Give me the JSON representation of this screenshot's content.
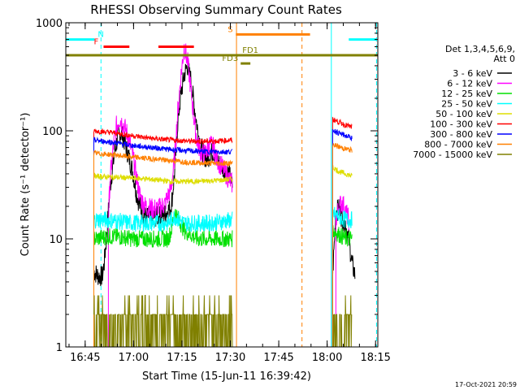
{
  "chart_data": {
    "type": "line",
    "title": "RHESSI Observing Summary Count Rates",
    "xlabel": "Start Time (15-Jun-11 16:39:42)",
    "ylabel": "Count Rate (s⁻¹ detector⁻¹)",
    "yscale": "log",
    "xlim": [
      -0.7,
      96
    ],
    "ylim": [
      1,
      1000
    ],
    "grid": false,
    "legend_position": "right",
    "x_ticks": [
      {
        "label": "16:45",
        "value": 5.3
      },
      {
        "label": "17:00",
        "value": 20.3
      },
      {
        "label": "17:15",
        "value": 35.3
      },
      {
        "label": "17:30",
        "value": 50.3
      },
      {
        "label": "17:45",
        "value": 65.3
      },
      {
        "label": "18:00",
        "value": 80.3
      },
      {
        "label": "18:15",
        "value": 95.3
      }
    ],
    "y_ticks": [
      {
        "label": "1",
        "value": 1
      },
      {
        "label": "10",
        "value": 10
      },
      {
        "label": "100",
        "value": 100
      },
      {
        "label": "1000",
        "value": 1000
      }
    ],
    "legend_header": [
      "Det 1,3,4,5,6,9,",
      "Att 0"
    ],
    "series": [
      {
        "name": "3 - 6 keV",
        "color": "#000000",
        "segments": [
          {
            "x": [
              8,
              9.5,
              10.6,
              11.2,
              12,
              13,
              14.5,
              15.5,
              16.5,
              17.2,
              18,
              19,
              20.2,
              21,
              22.5,
              24,
              26,
              28,
              30,
              32,
              33,
              34,
              35,
              36,
              37,
              38,
              39,
              40,
              41,
              42,
              43,
              44,
              45,
              46,
              48,
              50,
              51
            ],
            "y": [
              5,
              4.5,
              4.5,
              6,
              11,
              30,
              65,
              90,
              95,
              85,
              70,
              55,
              40,
              28,
              19,
              16,
              16,
              16,
              17,
              20,
              40,
              120,
              220,
              330,
              400,
              300,
              180,
              110,
              75,
              60,
              55,
              60,
              65,
              55,
              45,
              40,
              30
            ]
          },
          {
            "x": [
              82,
              83,
              84,
              85,
              86,
              87,
              88,
              89
            ],
            "y": [
              4.5,
              18,
              19,
              15,
              14,
              10,
              6,
              4.5
            ]
          }
        ]
      },
      {
        "name": "6 - 12 keV",
        "color": "#ff00ff",
        "segments": [
          {
            "x": [
              12.5,
              13,
              14,
              15,
              16,
              17,
              18,
              19,
              20,
              21,
              22,
              23,
              24,
              26,
              28,
              30,
              32,
              33,
              34,
              35,
              36,
              37,
              38,
              39,
              40,
              41,
              42,
              43,
              44,
              45,
              46,
              48,
              50,
              51
            ],
            "y": [
              15,
              35,
              70,
              110,
              130,
              115,
              100,
              80,
              60,
              40,
              27,
              22,
              20,
              19,
              19,
              21,
              30,
              55,
              150,
              330,
              600,
              450,
              250,
              130,
              80,
              65,
              60,
              65,
              75,
              70,
              55,
              45,
              35,
              32
            ]
          },
          {
            "x": [
              83,
              84,
              85,
              86,
              87
            ],
            "y": [
              15,
              20,
              22,
              18,
              15
            ]
          }
        ]
      },
      {
        "name": "12 - 25 keV",
        "color": "#00e000",
        "segments": [
          {
            "x": [
              8,
              12,
              16,
              20,
              24,
              28,
              31,
              32,
              33,
              36,
              40,
              44,
              48,
              51
            ],
            "y": [
              10,
              10.5,
              10.5,
              10,
              10,
              10,
              10,
              12,
              18,
              12,
              10,
              10,
              10,
              10
            ]
          },
          {
            "x": [
              82,
              84,
              86,
              88
            ],
            "y": [
              12,
              11,
              10,
              10
            ]
          }
        ]
      },
      {
        "name": "25 - 50 keV",
        "color": "#00ffff",
        "segments": [
          {
            "x": [
              8,
              12,
              16,
              20,
              24,
              28,
              31,
              32,
              33,
              36,
              40,
              44,
              48,
              51
            ],
            "y": [
              15,
              15,
              14.5,
              14,
              14,
              14,
              14,
              15,
              16,
              14,
              14,
              14,
              14.5,
              15
            ]
          },
          {
            "x": [
              82,
              84,
              86,
              88
            ],
            "y": [
              17,
              16,
              15,
              15
            ]
          }
        ]
      },
      {
        "name": "50 - 100 keV",
        "color": "#dddd00",
        "segments": [
          {
            "x": [
              8,
              16,
              24,
              32,
              40,
              48,
              51
            ],
            "y": [
              38,
              37,
              36,
              34,
              34,
              35,
              36
            ]
          },
          {
            "x": [
              82,
              84,
              86,
              88
            ],
            "y": [
              46,
              42,
              40,
              38
            ]
          }
        ]
      },
      {
        "name": "100 - 300 keV",
        "color": "#ff0000",
        "segments": [
          {
            "x": [
              8,
              14,
              20,
              26,
              32,
              38,
              44,
              51
            ],
            "y": [
              100,
              96,
              90,
              85,
              82,
              80,
              80,
              82
            ]
          },
          {
            "x": [
              82,
              84,
              86,
              88
            ],
            "y": [
              128,
              120,
              113,
              108
            ]
          }
        ]
      },
      {
        "name": "300 - 800 keV",
        "color": "#0000ff",
        "segments": [
          {
            "x": [
              8,
              14,
              20,
              26,
              32,
              38,
              44,
              51
            ],
            "y": [
              82,
              78,
              73,
              70,
              67,
              65,
              64,
              64
            ]
          },
          {
            "x": [
              82,
              84,
              86,
              88
            ],
            "y": [
              102,
              95,
              90,
              86
            ]
          }
        ]
      },
      {
        "name": "800 - 7000 keV",
        "color": "#ff8000",
        "segments": [
          {
            "x": [
              8,
              14,
              20,
              26,
              32,
              38,
              44,
              51
            ],
            "y": [
              62,
              60,
              57,
              55,
              53,
              51,
              50,
              50
            ]
          },
          {
            "x": [
              82,
              84,
              86,
              88
            ],
            "y": [
              75,
              71,
              68,
              66
            ]
          }
        ]
      },
      {
        "name": "7000 - 15000 keV",
        "color": "#808000",
        "segments": [
          {
            "x": [
              8,
              51
            ],
            "y": [
              1.8,
              1.8
            ]
          },
          {
            "x": [
              82,
              88
            ],
            "y": [
              1.8,
              1.8
            ]
          }
        ]
      }
    ],
    "flag_bars": [
      {
        "label": "N",
        "color": "#00ffff",
        "x_ranges": [
          [
            -0.7,
            8.2
          ],
          [
            87,
            95.7
          ]
        ],
        "y": 700
      },
      {
        "label": "F",
        "color": "#ff0000",
        "x_ranges": [
          [
            11,
            19
          ],
          [
            28,
            39
          ]
        ],
        "y": 600
      },
      {
        "label": "S",
        "color": "#ff8000",
        "x_ranges": [
          [
            52,
            75
          ]
        ],
        "y": 780
      },
      {
        "label": "FD1",
        "color": "#808000",
        "x_ranges": [
          [
            -0.7,
            96
          ]
        ],
        "y": 500
      },
      {
        "label": "FD3",
        "color": "#808000",
        "x_ranges": [
          [
            53.5,
            56.5
          ]
        ],
        "y": 420
      }
    ],
    "vertical_markers": [
      {
        "x": -0.7,
        "color": "#00ffff",
        "style": "solid"
      },
      {
        "x": 10.2,
        "color": "#00ffff",
        "style": "dashed"
      },
      {
        "x": 52.2,
        "color": "#ff8000",
        "style": "solid"
      },
      {
        "x": 72.5,
        "color": "#ff8000",
        "style": "dashed"
      },
      {
        "x": 81.6,
        "color": "#00ffff",
        "style": "solid"
      },
      {
        "x": 95.6,
        "color": "#00ffff",
        "style": "dashed"
      }
    ]
  },
  "footer": {
    "timestamp": "17-Oct-2021 20:59"
  }
}
